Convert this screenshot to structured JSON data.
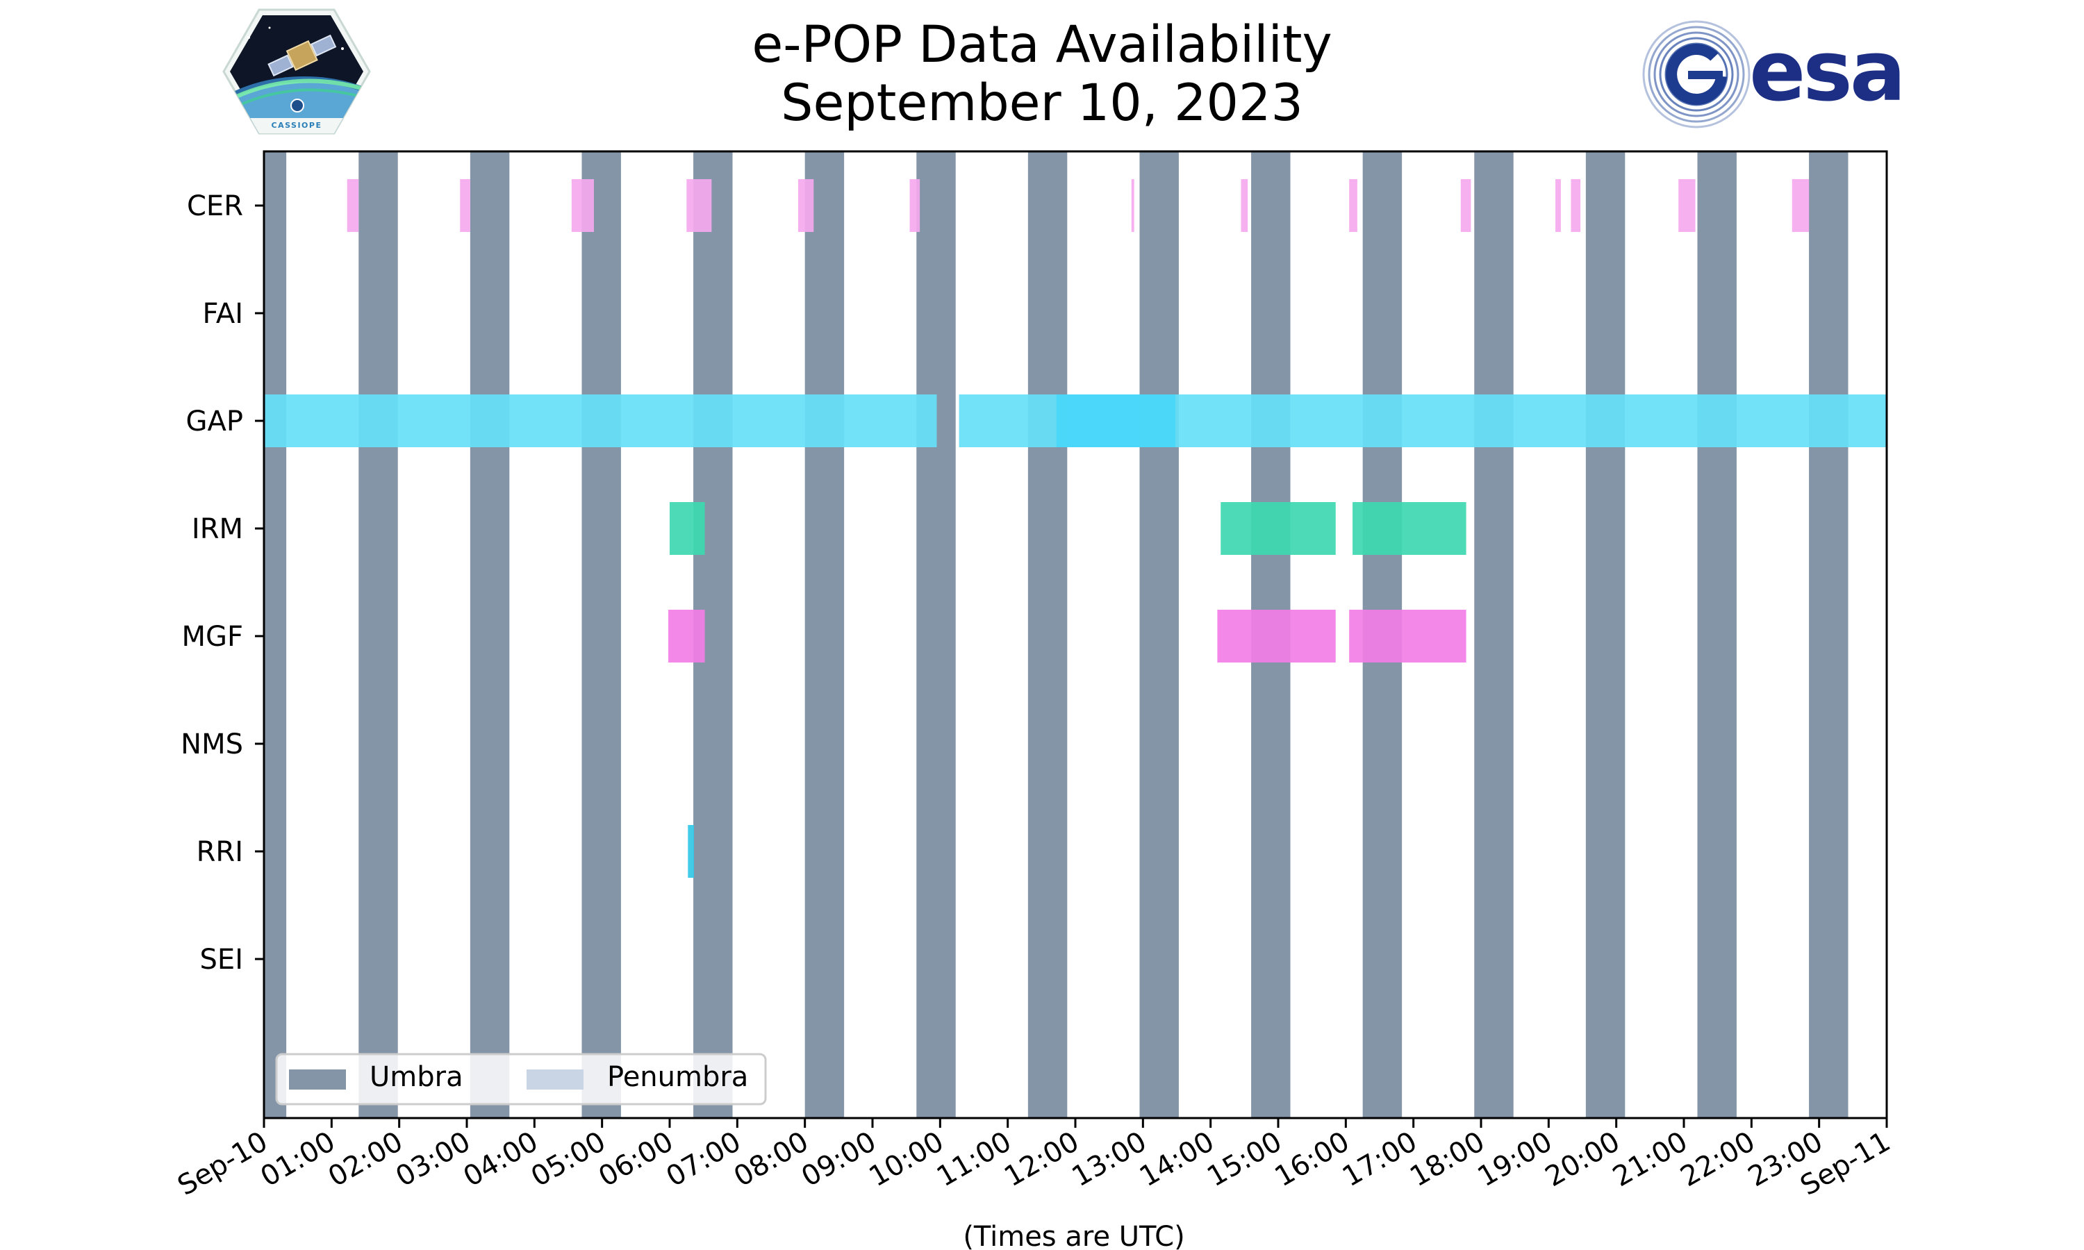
{
  "logos": {
    "left": {
      "name": "CASSIOPE mission logo",
      "text": "CASSIOPE"
    },
    "right": {
      "name": "ESA logo",
      "text": "esa"
    }
  },
  "chart_data": {
    "type": "timeline",
    "title": "e-POP Data Availability",
    "subtitle": "September 10, 2023",
    "xlabel": "(Times are UTC)",
    "x_unit": "hours",
    "xlim": [
      0,
      24
    ],
    "x_tick_labels": [
      "Sep-10",
      "01:00",
      "02:00",
      "03:00",
      "04:00",
      "05:00",
      "06:00",
      "07:00",
      "08:00",
      "09:00",
      "10:00",
      "11:00",
      "12:00",
      "13:00",
      "14:00",
      "15:00",
      "16:00",
      "17:00",
      "18:00",
      "19:00",
      "20:00",
      "21:00",
      "22:00",
      "23:00",
      "Sep-11"
    ],
    "instruments": [
      "CER",
      "FAI",
      "GAP",
      "IRM",
      "MGF",
      "NMS",
      "RRI",
      "SEI"
    ],
    "colors": {
      "umbra": "#8595a8",
      "penumbra": "#c9d5e5",
      "CER": "#f5a8ee",
      "GAP": "#66dff8",
      "GAP_dark": "#47d6f8",
      "IRM": "#3dd8b0",
      "MGF": "#f27ee6",
      "RRI": "#33c8e6"
    },
    "umbra_intervals": [
      [
        0,
        0.33
      ],
      [
        1.4,
        1.98
      ],
      [
        3.05,
        3.63
      ],
      [
        4.7,
        5.28
      ],
      [
        6.35,
        6.93
      ],
      [
        8.0,
        8.58
      ],
      [
        9.65,
        10.23
      ],
      [
        11.3,
        11.88
      ],
      [
        12.95,
        13.53
      ],
      [
        14.6,
        15.18
      ],
      [
        16.25,
        16.83
      ],
      [
        17.9,
        18.48
      ],
      [
        19.55,
        20.13
      ],
      [
        21.2,
        21.78
      ],
      [
        22.85,
        23.43
      ]
    ],
    "series": [
      {
        "name": "CER",
        "intervals": [
          [
            1.23,
            1.4
          ],
          [
            2.9,
            3.05
          ],
          [
            4.55,
            4.88
          ],
          [
            6.25,
            6.62
          ],
          [
            7.9,
            8.13
          ],
          [
            9.55,
            9.7
          ],
          [
            12.83,
            12.87
          ],
          [
            14.45,
            14.55
          ],
          [
            16.05,
            16.17
          ],
          [
            17.7,
            17.85
          ],
          [
            19.1,
            19.18
          ],
          [
            19.33,
            19.47
          ],
          [
            20.92,
            21.17
          ],
          [
            22.6,
            22.85
          ]
        ]
      },
      {
        "name": "FAI",
        "intervals": []
      },
      {
        "name": "GAP",
        "intervals": [
          [
            0,
            9.95
          ],
          [
            10.28,
            23.99
          ]
        ],
        "highlight_intervals": [
          [
            11.72,
            13.48
          ]
        ]
      },
      {
        "name": "IRM",
        "intervals": [
          [
            6.0,
            6.52
          ],
          [
            14.15,
            15.85
          ],
          [
            16.1,
            17.78
          ]
        ]
      },
      {
        "name": "MGF",
        "intervals": [
          [
            5.98,
            6.52
          ],
          [
            14.1,
            15.85
          ],
          [
            16.05,
            17.78
          ]
        ]
      },
      {
        "name": "NMS",
        "intervals": []
      },
      {
        "name": "RRI",
        "intervals": [
          [
            6.27,
            6.36
          ]
        ]
      },
      {
        "name": "SEI",
        "intervals": []
      }
    ],
    "legend": {
      "location": "bottom-left",
      "entries": [
        "Umbra",
        "Penumbra"
      ]
    }
  }
}
